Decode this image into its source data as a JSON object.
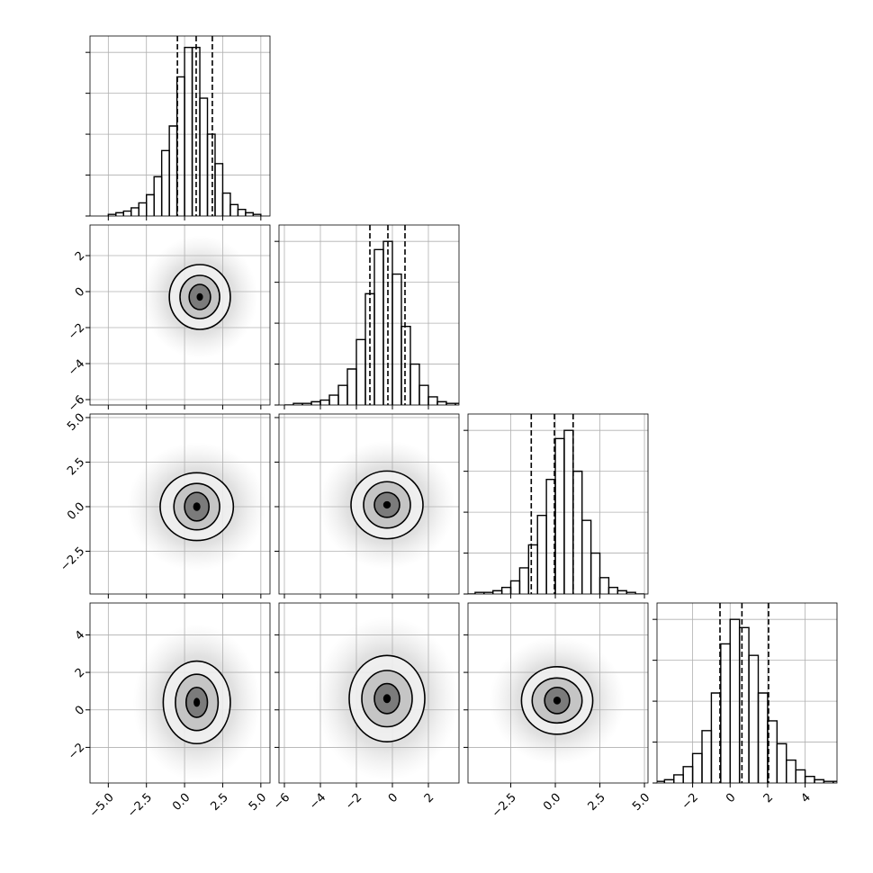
{
  "chart_data": {
    "type": "corner",
    "grid": true,
    "color": "#000000",
    "params": [
      {
        "range": [
          -6.2,
          5.6
        ],
        "ticks": [
          {
            "value": -5,
            "label": "−5.0"
          },
          {
            "value": -2.5,
            "label": "−2.5"
          },
          {
            "value": 0,
            "label": "0.0"
          },
          {
            "value": 2.5,
            "label": "2.5"
          },
          {
            "value": 5,
            "label": "5.0"
          }
        ]
      },
      {
        "range": [
          -6.3,
          3.7
        ],
        "ticks": [
          {
            "value": -6,
            "label": "−6"
          },
          {
            "value": -4,
            "label": "−4"
          },
          {
            "value": -2,
            "label": "−2"
          },
          0,
          2
        ]
      },
      {
        "range": [
          -4.9,
          5.2
        ],
        "ticks": [
          {
            "value": -2.5,
            "label": "−2.5"
          },
          {
            "value": 0,
            "label": "0.0"
          },
          {
            "value": 2.5,
            "label": "2.5"
          },
          {
            "value": 5,
            "label": "5.0"
          }
        ]
      },
      {
        "range": [
          -3.9,
          5.7
        ],
        "ticks": [
          {
            "value": -2,
            "label": "−2"
          },
          0,
          2,
          4
        ]
      }
    ],
    "histograms": [
      {
        "bins": [
          -5,
          -4.5,
          -4,
          -3.5,
          -3,
          -2.5,
          -2,
          -1.5,
          -1,
          -0.5,
          0,
          0.5,
          1,
          1.5,
          2,
          2.5,
          3,
          3.5,
          4,
          4.5,
          5
        ],
        "counts": [
          1,
          2,
          3,
          5,
          8,
          13,
          24,
          40,
          55,
          85,
          103,
          103,
          72,
          50,
          32,
          14,
          7,
          4,
          2,
          1
        ],
        "quantiles": [
          -0.47,
          0.76,
          1.82
        ],
        "ylim": [
          0,
          110
        ],
        "yticks": [
          0,
          25,
          50,
          75,
          100
        ]
      },
      {
        "bins": [
          -6,
          -5.5,
          -5,
          -4.5,
          -4,
          -3.5,
          -3,
          -2.5,
          -2,
          -1.5,
          -1,
          -0.5,
          0,
          0.5,
          1,
          1.5,
          2,
          2.5,
          3,
          3.5,
          4
        ],
        "counts": [
          0,
          1,
          1,
          2,
          3,
          6,
          12,
          22,
          40,
          68,
          95,
          100,
          80,
          48,
          25,
          12,
          5,
          2,
          1,
          1
        ],
        "quantiles": [
          -1.25,
          -0.25,
          0.7
        ],
        "ylim": [
          0,
          110
        ],
        "yticks": [
          0,
          25,
          50,
          75,
          100
        ]
      },
      {
        "bins": [
          -5,
          -4.5,
          -4,
          -3.5,
          -3,
          -2.5,
          -2,
          -1.5,
          -1,
          -0.5,
          0,
          0.5,
          1,
          1.5,
          2,
          2.5,
          3,
          3.5,
          4,
          4.5,
          5
        ],
        "counts": [
          0,
          1,
          1,
          2,
          4,
          8,
          16,
          30,
          48,
          70,
          95,
          100,
          75,
          45,
          25,
          10,
          4,
          2,
          1,
          0
        ],
        "quantiles": [
          -1.35,
          -0.05,
          1.0
        ],
        "ylim": [
          0,
          110
        ],
        "yticks": [
          0,
          25,
          50,
          75,
          100
        ]
      },
      {
        "bins": [
          -4,
          -3.5,
          -3,
          -2.5,
          -2,
          -1.5,
          -1,
          -0.5,
          0,
          0.5,
          1,
          1.5,
          2,
          2.5,
          3,
          3.5,
          4,
          4.5,
          5,
          5.5,
          6
        ],
        "counts": [
          1,
          2,
          5,
          10,
          18,
          32,
          55,
          85,
          100,
          95,
          78,
          55,
          38,
          24,
          14,
          8,
          4,
          2,
          1,
          1
        ],
        "quantiles": [
          -0.54,
          0.63,
          2.05
        ],
        "ylim": [
          0,
          110
        ],
        "yticks": [
          0,
          25,
          50,
          75,
          100
        ]
      }
    ],
    "contours": [
      {
        "x": 0,
        "y": 1,
        "center": [
          1.0,
          -0.3
        ],
        "levels": [
          [
            2.0,
            1.8
          ],
          [
            1.3,
            1.2
          ],
          [
            0.7,
            0.7
          ]
        ]
      },
      {
        "x": 0,
        "y": 2,
        "center": [
          0.8,
          0.0
        ],
        "levels": [
          [
            2.4,
            1.9
          ],
          [
            1.5,
            1.3
          ],
          [
            0.8,
            0.8
          ]
        ]
      },
      {
        "x": 1,
        "y": 2,
        "center": [
          -0.3,
          0.1
        ],
        "levels": [
          [
            2.0,
            1.9
          ],
          [
            1.3,
            1.3
          ],
          [
            0.7,
            0.7
          ]
        ]
      },
      {
        "x": 0,
        "y": 3,
        "center": [
          0.8,
          0.4
        ],
        "levels": [
          [
            2.2,
            2.2
          ],
          [
            1.4,
            1.5
          ],
          [
            0.7,
            0.8
          ]
        ]
      },
      {
        "x": 1,
        "y": 3,
        "center": [
          -0.3,
          0.6
        ],
        "levels": [
          [
            2.1,
            2.3
          ],
          [
            1.4,
            1.5
          ],
          [
            0.7,
            0.8
          ]
        ]
      },
      {
        "x": 2,
        "y": 3,
        "center": [
          0.1,
          0.5
        ],
        "levels": [
          [
            2.0,
            1.8
          ],
          [
            1.4,
            1.2
          ],
          [
            0.7,
            0.7
          ]
        ]
      }
    ]
  }
}
